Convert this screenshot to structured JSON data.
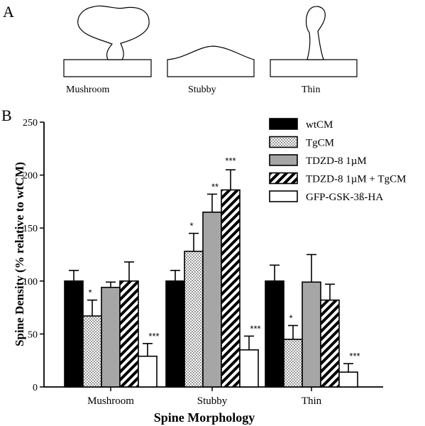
{
  "panel_a": {
    "label": "A",
    "shapes": [
      {
        "label": "Mushroom",
        "icon": "mushroom-spine-outline"
      },
      {
        "label": "Stubby",
        "icon": "stubby-spine-outline"
      },
      {
        "label": "Thin",
        "icon": "thin-spine-outline"
      }
    ]
  },
  "panel_b": {
    "label": "B"
  },
  "chart_data": {
    "type": "bar",
    "title": "",
    "xlabel": "Spine Morphology",
    "ylabel": "Spine Density (% relative to wtCM)",
    "ylim": [
      0,
      250
    ],
    "yticks": [
      0,
      50,
      100,
      150,
      200,
      250
    ],
    "grid": false,
    "legend_position": "top-right",
    "categories": [
      "Mushroom",
      "Stubby",
      "Thin"
    ],
    "series": [
      {
        "name": "wtCM",
        "values": [
          100,
          100,
          100
        ],
        "errors": [
          10,
          10,
          15
        ],
        "sig": [
          "",
          "",
          ""
        ],
        "fill": "#000000",
        "pattern": "solid"
      },
      {
        "name": "TgCM",
        "values": [
          67,
          128,
          45
        ],
        "errors": [
          15,
          17,
          13
        ],
        "sig": [
          "*",
          "*",
          "*"
        ],
        "fill": "#ffffff",
        "pattern": "dots"
      },
      {
        "name": "TDZD-8 1µM",
        "values": [
          94,
          165,
          99
        ],
        "errors": [
          5,
          17,
          26
        ],
        "sig": [
          "",
          "**",
          ""
        ],
        "fill": "#a6a6a6",
        "pattern": "solid"
      },
      {
        "name": "TDZD-8 1µM + TgCM",
        "values": [
          100,
          186,
          82
        ],
        "errors": [
          18,
          19,
          15
        ],
        "sig": [
          "",
          "***",
          ""
        ],
        "fill": "#ffffff",
        "pattern": "stripes"
      },
      {
        "name": "GFP-GSK-3ß-HA",
        "values": [
          29,
          35,
          14
        ],
        "errors": [
          12,
          13,
          8
        ],
        "sig": [
          "***",
          "***",
          "***"
        ],
        "fill": "#ffffff",
        "pattern": "solid"
      }
    ]
  }
}
